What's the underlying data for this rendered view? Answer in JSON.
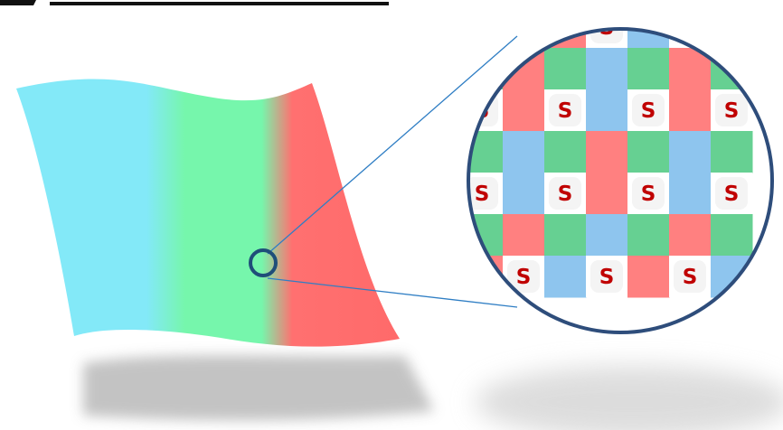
{
  "colors": {
    "cyan": "#83E9F8",
    "green": "#76F6AC",
    "red": "#FF6A6A",
    "tile_red": "#FF8080",
    "tile_green": "#66D092",
    "tile_blue": "#8EC5EE",
    "s_tile_bg": "#F4F4F4",
    "s_text": "#C00000",
    "lens_border": "#2E4D7B",
    "connector": "#2F7EC4",
    "marker": "#1F4E79",
    "title_underline": "#111111"
  },
  "magnifier": {
    "letter": "S",
    "pattern": [
      [
        "b",
        "s",
        "r",
        "s",
        "b",
        "s",
        "r"
      ],
      [
        "g",
        "r",
        "g",
        "b",
        "g",
        "r",
        "g"
      ],
      [
        "s",
        "r",
        "s",
        "b",
        "s",
        "r",
        "s"
      ],
      [
        "g",
        "b",
        "g",
        "r",
        "g",
        "b",
        "g"
      ],
      [
        "s",
        "b",
        "s",
        "r",
        "s",
        "b",
        "s"
      ],
      [
        "g",
        "r",
        "g",
        "b",
        "g",
        "r",
        "g"
      ],
      [
        "r",
        "s",
        "b",
        "s",
        "r",
        "s",
        "b"
      ]
    ]
  }
}
